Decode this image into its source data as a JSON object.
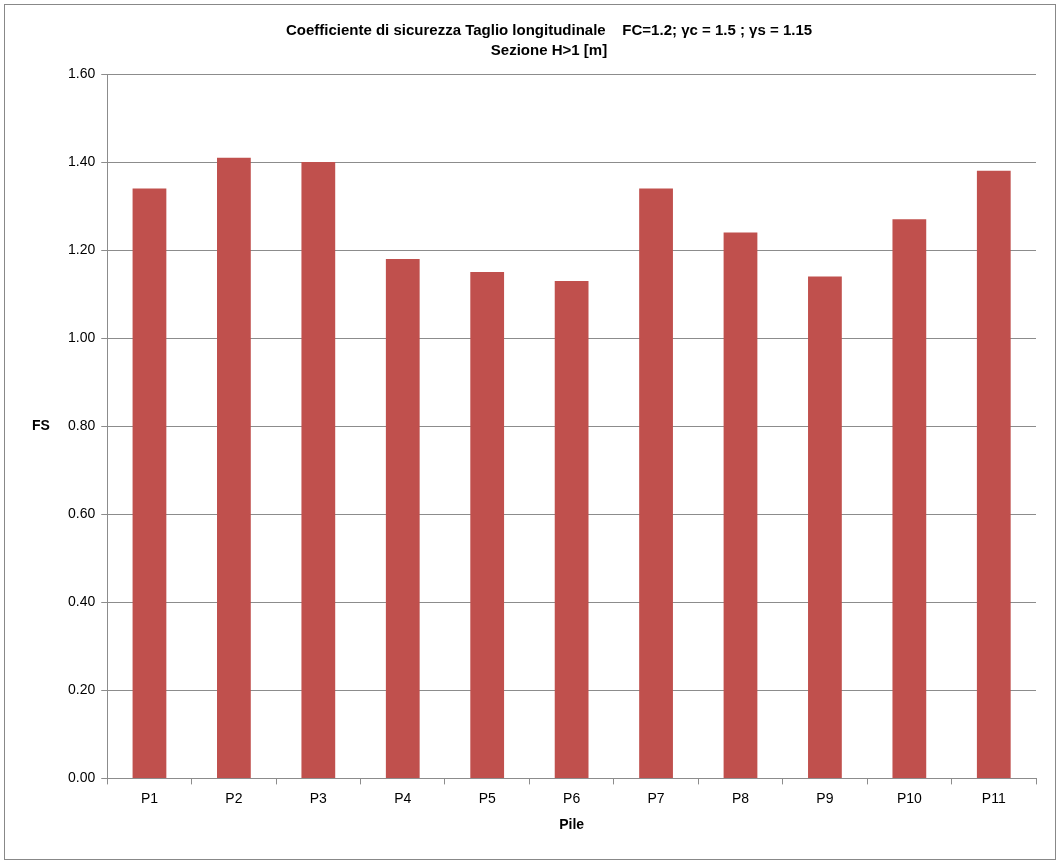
{
  "chart_data": {
    "type": "bar",
    "title": "Coefficiente di sicurezza Taglio longitudinale    FC=1.2; γc = 1.5 ; γs = 1.15",
    "subtitle": "Sezione H>1 [m]",
    "xlabel": "Pile",
    "ylabel": "FS",
    "categories": [
      "P1",
      "P2",
      "P3",
      "P4",
      "P5",
      "P6",
      "P7",
      "P8",
      "P9",
      "P10",
      "P11"
    ],
    "values": [
      1.34,
      1.41,
      1.4,
      1.18,
      1.15,
      1.13,
      1.34,
      1.24,
      1.14,
      1.27,
      1.38
    ],
    "color": "#c0504d",
    "ylim": [
      0,
      1.6
    ],
    "yticks": [
      {
        "value": 0,
        "label": "0.00"
      },
      {
        "value": 0.2,
        "label": "0.20"
      },
      {
        "value": 0.4,
        "label": "0.40"
      },
      {
        "value": 0.6,
        "label": "0.60"
      },
      {
        "value": 0.8,
        "label": "0.80"
      },
      {
        "value": 1,
        "label": "1.00"
      },
      {
        "value": 1.2,
        "label": "1.20"
      },
      {
        "value": 1.4,
        "label": "1.40"
      },
      {
        "value": 1.6,
        "label": "1.60"
      }
    ],
    "grid": "y",
    "legend": false
  }
}
